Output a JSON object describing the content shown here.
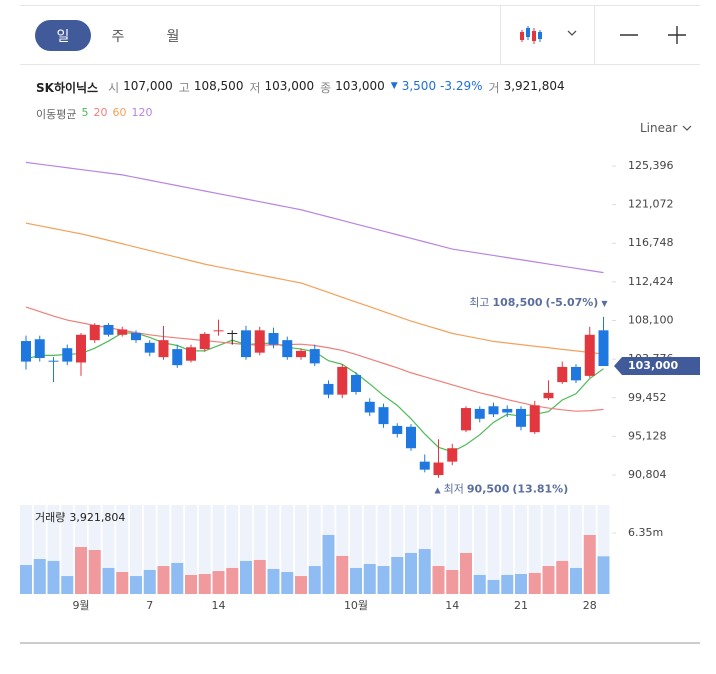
{
  "tabs": {
    "items": [
      "일",
      "주",
      "월"
    ],
    "selected": 0
  },
  "chart_data": {
    "type": "candlestick",
    "title": "SK하이닉스",
    "quote": [
      {
        "label": "시",
        "value": "107,000"
      },
      {
        "label": "고",
        "value": "108,500"
      },
      {
        "label": "저",
        "value": "103,000"
      },
      {
        "label": "종",
        "value": "103,000"
      }
    ],
    "change": {
      "arrow": "▼",
      "amount": "3,500",
      "percent": "-3.29%"
    },
    "volume_quote": {
      "label": "거",
      "value": "3,921,804"
    },
    "ma_label": "이동평균",
    "scale_label": "Linear",
    "up_color": "#e2373f",
    "down_color": "#1f78e0",
    "categories": [
      null,
      null,
      null,
      null,
      "9월",
      null,
      null,
      null,
      null,
      "7",
      null,
      null,
      null,
      null,
      "14",
      null,
      null,
      null,
      null,
      null,
      null,
      null,
      null,
      null,
      "10월",
      null,
      null,
      null,
      null,
      null,
      null,
      "14",
      null,
      null,
      null,
      null,
      "21",
      null,
      null,
      null,
      null,
      "28",
      null
    ],
    "open": [
      105800,
      106000,
      103600,
      105000,
      103400,
      105900,
      107600,
      106500,
      106700,
      105600,
      104000,
      104900,
      103600,
      104900,
      106900,
      106700,
      107000,
      104500,
      106700,
      105900,
      104000,
      104900,
      101000,
      99800,
      102000,
      99000,
      98400,
      96300,
      96200,
      92300,
      90800,
      92300,
      95800,
      98200,
      98500,
      98200,
      98200,
      95600,
      99400,
      101200,
      102900,
      101900,
      107000
    ],
    "high": [
      106400,
      106400,
      104000,
      105400,
      106700,
      107800,
      107800,
      107400,
      107000,
      105900,
      107500,
      105400,
      105400,
      106800,
      108200,
      107000,
      107500,
      107400,
      107300,
      106300,
      105000,
      105400,
      101400,
      103200,
      102300,
      99400,
      98800,
      96600,
      96500,
      93100,
      94800,
      94300,
      98500,
      98500,
      98900,
      98600,
      98500,
      99100,
      101400,
      103500,
      103200,
      107400,
      108500
    ],
    "low": [
      102600,
      103500,
      101200,
      103100,
      101900,
      105600,
      106300,
      106300,
      105600,
      104100,
      103700,
      102800,
      103400,
      104600,
      106400,
      105400,
      103700,
      104200,
      105000,
      103700,
      103700,
      103000,
      99400,
      99400,
      99800,
      97400,
      96100,
      95000,
      93500,
      91100,
      90500,
      91900,
      95600,
      96700,
      97300,
      97300,
      95800,
      95400,
      99200,
      101000,
      101100,
      101700,
      103000
    ],
    "close": [
      103500,
      103900,
      103500,
      103500,
      106500,
      107600,
      106500,
      107100,
      105900,
      104500,
      105900,
      103100,
      105100,
      106600,
      107000,
      106700,
      104000,
      107000,
      105400,
      104000,
      104700,
      103300,
      99800,
      102900,
      100100,
      97800,
      96500,
      95400,
      93800,
      91400,
      92200,
      93800,
      98300,
      97100,
      97600,
      97800,
      96200,
      98600,
      100000,
      102900,
      101400,
      106500,
      103000
    ],
    "series": [
      {
        "name": "5",
        "color": "#4cbb55",
        "values": [
          103800,
          104200,
          104200,
          104300,
          104400,
          105000,
          105800,
          106700,
          106700,
          106200,
          105600,
          105300,
          104700,
          104700,
          105300,
          105900,
          105400,
          105500,
          105600,
          105100,
          104900,
          104600,
          103600,
          103200,
          102200,
          101000,
          99700,
          98600,
          97100,
          95400,
          93900,
          93400,
          94200,
          95300,
          96700,
          97600,
          97400,
          97600,
          97900,
          99200,
          99900,
          101600,
          102700
        ]
      },
      {
        "name": "20",
        "color": "#ef7f7a",
        "values": [
          109600,
          109100,
          108600,
          108150,
          107850,
          107550,
          107300,
          107000,
          106750,
          106500,
          106300,
          106150,
          106000,
          105850,
          105700,
          105550,
          105400,
          105350,
          105350,
          105400,
          105450,
          105300,
          105050,
          104750,
          104300,
          103800,
          103300,
          102800,
          102250,
          101800,
          101350,
          100900,
          100450,
          100000,
          99650,
          99250,
          98900,
          98550,
          98300,
          98100,
          97950,
          98000,
          98150
        ]
      },
      {
        "name": "60",
        "color": "#f4a15a",
        "values": [
          119000,
          118700,
          118400,
          118100,
          117800,
          117450,
          117070,
          116690,
          116310,
          115930,
          115550,
          115170,
          114790,
          114410,
          114100,
          113800,
          113500,
          113200,
          112900,
          112600,
          112300,
          111770,
          111240,
          110700,
          110170,
          109640,
          109100,
          108570,
          108040,
          107580,
          107120,
          106660,
          106360,
          106060,
          105760,
          105580,
          105400,
          105220,
          105050,
          104870,
          104700,
          104520,
          104340
        ]
      },
      {
        "name": "120",
        "color": "#b884e0",
        "values": [
          125800,
          125600,
          125400,
          125200,
          125000,
          124800,
          124600,
          124400,
          124100,
          123800,
          123500,
          123200,
          122900,
          122600,
          122300,
          122000,
          121700,
          121400,
          121100,
          120800,
          120500,
          120100,
          119700,
          119300,
          118900,
          118500,
          118100,
          117700,
          117300,
          116900,
          116500,
          116100,
          115860,
          115620,
          115380,
          115140,
          114900,
          114660,
          114420,
          114180,
          113940,
          113700,
          113460
        ]
      }
    ],
    "ylim": [
      89125,
      127187
    ],
    "yticks": [
      {
        "value": 125396,
        "label": "125,396"
      },
      {
        "value": 121072,
        "label": "121,072"
      },
      {
        "value": 116748,
        "label": "116,748"
      },
      {
        "value": 112424,
        "label": "112,424"
      },
      {
        "value": 108100,
        "label": "108,100"
      },
      {
        "value": 103776,
        "label": "103,776"
      },
      {
        "value": 99452,
        "label": "99,452"
      },
      {
        "value": 95128,
        "label": "95,128"
      },
      {
        "value": 90804,
        "label": "90,804"
      }
    ],
    "last_price": {
      "value": 103000,
      "label": "103,000"
    },
    "high_note": {
      "prefix": "최고",
      "value": 108500,
      "label": "108,500",
      "percent": "(-5.07%)",
      "arrow": "▼"
    },
    "low_note": {
      "prefix": "최저",
      "value": 90500,
      "label": "90,500",
      "percent": "(13.81%)",
      "arrow": "▲"
    },
    "volume": {
      "title": "거래량",
      "current": "3,921,804",
      "up_color": "#f19a9d",
      "down_color": "#8fbcf2",
      "values": [
        3020000,
        3640000,
        3440000,
        1870000,
        4890000,
        4580000,
        2710000,
        2290000,
        1870000,
        2500000,
        2910000,
        3230000,
        1980000,
        2080000,
        2390000,
        2710000,
        3440000,
        3540000,
        2600000,
        2290000,
        1870000,
        2910000,
        6140000,
        3960000,
        2710000,
        3120000,
        2910000,
        3850000,
        4270000,
        4680000,
        2910000,
        2500000,
        4270000,
        1980000,
        1460000,
        1980000,
        2080000,
        2190000,
        2910000,
        3440000,
        2710000,
        6140000,
        3921804
      ],
      "ylim": [
        0,
        9260000
      ],
      "yticks": [
        {
          "value": 6350000,
          "label": "6.35m"
        }
      ]
    }
  }
}
